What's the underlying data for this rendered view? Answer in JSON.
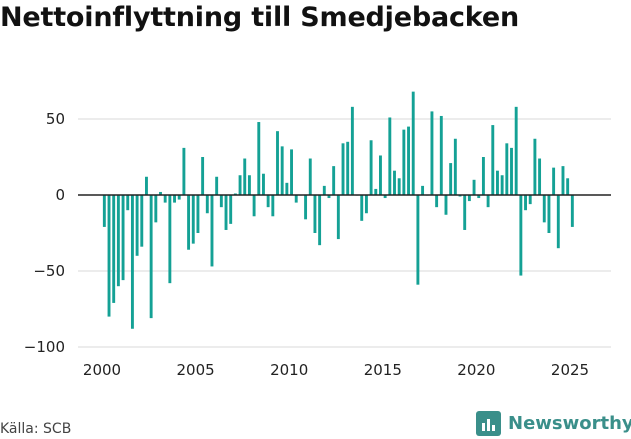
{
  "title": "Nettoinflyttning till Smedjebacken",
  "source": "Källa: SCB",
  "brand": {
    "name": "Newsworthy",
    "icon": "newsworthy-chart-icon"
  },
  "colors": {
    "bar": "#14a195",
    "grid": "#d9d9d9",
    "zero_line": "#222222",
    "brand": "#3a8f8a"
  },
  "chart_data": {
    "type": "bar",
    "title": "Nettoinflyttning till Smedjebacken",
    "xlabel": "",
    "ylabel": "",
    "frequency": "quarterly",
    "x_start": "2000 Q1",
    "xlim": [
      1999.3,
      2026.9
    ],
    "ylim": [
      -100,
      70
    ],
    "yticks": [
      50,
      0,
      -50,
      -100
    ],
    "ytick_labels": [
      "50",
      "0",
      "−50",
      "−100"
    ],
    "xticks": [
      2000,
      2005,
      2010,
      2015,
      2020,
      2025
    ],
    "xtick_labels": [
      "2000",
      "2005",
      "2010",
      "2015",
      "2020",
      "2025"
    ],
    "grid": true,
    "legend": "none",
    "values": [
      -21,
      -80,
      -71,
      -60,
      -56,
      -10,
      -88,
      -40,
      -34,
      12,
      -81,
      -18,
      2,
      -5,
      -58,
      -5,
      -3,
      31,
      -36,
      -32,
      -25,
      25,
      -12,
      -47,
      12,
      -8,
      -23,
      -19,
      1,
      13,
      24,
      13,
      -14,
      48,
      14,
      -8,
      -14,
      42,
      32,
      8,
      30,
      -5,
      0,
      -16,
      24,
      -25,
      -33,
      6,
      -2,
      19,
      -29,
      34,
      35,
      58,
      0,
      -17,
      -12,
      36,
      4,
      26,
      -2,
      51,
      16,
      11,
      43,
      45,
      68,
      -59,
      6,
      0,
      55,
      -8,
      52,
      -13,
      21,
      37,
      -1,
      -23,
      -4,
      10,
      -2,
      25,
      -8,
      46,
      16,
      13,
      34,
      31,
      58,
      -53,
      -10,
      -6,
      37,
      24,
      -18,
      -25,
      18,
      -35,
      19,
      11,
      -21
    ]
  }
}
